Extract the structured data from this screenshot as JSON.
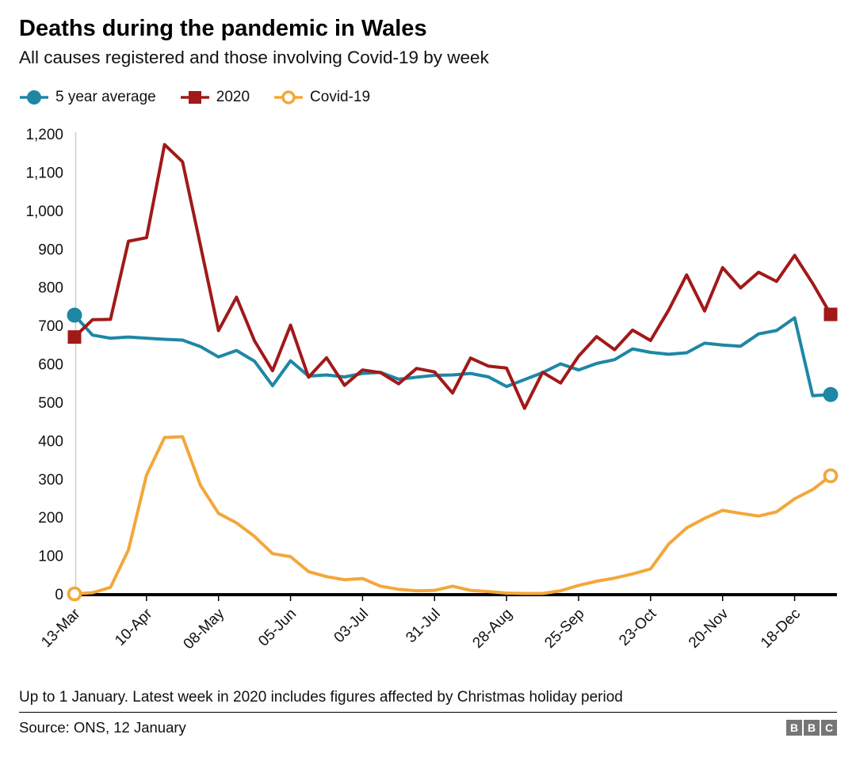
{
  "title": "Deaths during the pandemic in Wales",
  "subtitle": "All causes registered and those involving Covid-19 by week",
  "footnote": "Up to 1 January. Latest week in 2020 includes figures affected by Christmas holiday period",
  "source": "Source: ONS, 12 January",
  "logo": {
    "letters": [
      "B",
      "B",
      "C"
    ]
  },
  "colors": {
    "five_year_average": "#1E87A5",
    "year_2020": "#A11919",
    "covid19": "#F3A73B",
    "axis": "#000000",
    "y_axis_line": "#CCCCCC",
    "logo_grey": "#767676"
  },
  "chart_data": {
    "type": "line",
    "title": "Deaths during the pandemic in Wales",
    "subtitle": "All causes registered and those involving Covid-19 by week",
    "xlabel": "",
    "ylabel": "",
    "ylim": [
      0,
      1200
    ],
    "y_ticks": [
      0,
      100,
      200,
      300,
      400,
      500,
      600,
      700,
      800,
      900,
      1000,
      1100,
      1200
    ],
    "grid": false,
    "legend_position": "top",
    "x_tick_labels": [
      "13-Mar",
      "10-Apr",
      "08-May",
      "05-Jun",
      "03-Jul",
      "31-Jul",
      "28-Aug",
      "25-Sep",
      "23-Oct",
      "20-Nov",
      "18-Dec"
    ],
    "x_tick_indices": [
      0,
      4,
      8,
      12,
      16,
      20,
      24,
      28,
      32,
      36,
      40
    ],
    "categories": [
      "13-Mar",
      "20-Mar",
      "27-Mar",
      "03-Apr",
      "10-Apr",
      "17-Apr",
      "24-Apr",
      "01-May",
      "08-May",
      "15-May",
      "22-May",
      "29-May",
      "05-Jun",
      "12-Jun",
      "19-Jun",
      "26-Jun",
      "03-Jul",
      "10-Jul",
      "17-Jul",
      "24-Jul",
      "31-Jul",
      "07-Aug",
      "14-Aug",
      "21-Aug",
      "28-Aug",
      "04-Sep",
      "11-Sep",
      "18-Sep",
      "25-Sep",
      "02-Oct",
      "09-Oct",
      "16-Oct",
      "23-Oct",
      "30-Oct",
      "06-Nov",
      "13-Nov",
      "20-Nov",
      "27-Nov",
      "04-Dec",
      "11-Dec",
      "18-Dec",
      "25-Dec",
      "01-Jan"
    ],
    "series": [
      {
        "name": "5 year average",
        "color": "#1E87A5",
        "marker": "filled-circle",
        "values": [
          727,
          675,
          667,
          670,
          667,
          664,
          662,
          645,
          618,
          635,
          607,
          543,
          608,
          568,
          571,
          566,
          575,
          578,
          560,
          565,
          570,
          571,
          575,
          566,
          541,
          559,
          577,
          600,
          584,
          601,
          611,
          639,
          630,
          625,
          629,
          654,
          649,
          646,
          678,
          687,
          720,
          517,
          520
        ]
      },
      {
        "name": "2020",
        "color": "#A11919",
        "marker": "filled-square",
        "values": [
          670,
          715,
          716,
          920,
          929,
          1172,
          1127,
          908,
          687,
          774,
          660,
          582,
          701,
          565,
          616,
          544,
          584,
          577,
          548,
          588,
          579,
          524,
          615,
          594,
          589,
          484,
          578,
          550,
          620,
          671,
          637,
          688,
          661,
          740,
          832,
          738,
          851,
          798,
          839,
          815,
          883,
          810,
          729
        ]
      },
      {
        "name": "Covid-19",
        "color": "#F3A73B",
        "marker": "open-circle",
        "values": [
          0,
          3,
          17,
          115,
          310,
          408,
          410,
          283,
          210,
          185,
          150,
          105,
          97,
          58,
          45,
          37,
          40,
          20,
          12,
          8,
          9,
          20,
          9,
          6,
          2,
          1,
          1,
          8,
          22,
          33,
          41,
          52,
          65,
          130,
          172,
          197,
          218,
          210,
          203,
          214,
          248,
          272,
          308
        ]
      }
    ]
  }
}
